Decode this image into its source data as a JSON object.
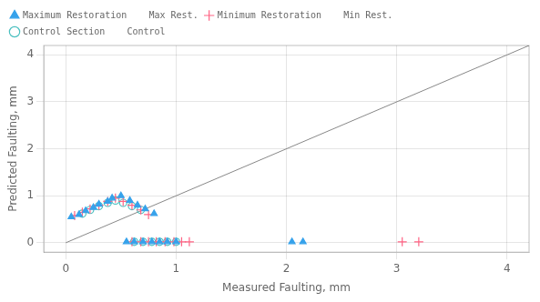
{
  "chart_data": {
    "type": "scatter",
    "xlabel": "Measured Faulting, mm",
    "ylabel": "Predicted Faulting, mm",
    "xlim": [
      -0.2,
      4.2
    ],
    "ylim": [
      -0.2,
      4.2
    ],
    "xticks": [
      0,
      1,
      2,
      3,
      4
    ],
    "yticks": [
      0,
      1,
      2,
      3,
      4
    ],
    "grid": true,
    "legend": "upper left",
    "series": [
      {
        "type": "line",
        "x": [
          0,
          4.2
        ],
        "values": [
          0,
          4.2
        ]
      },
      {
        "name": "Maximum Restoration    Max Rest.",
        "marker": "triangle",
        "x": [
          0.05,
          0.12,
          0.18,
          0.25,
          0.3,
          0.38,
          0.42,
          0.5,
          0.58,
          0.65,
          0.72,
          0.8,
          0.55,
          0.62,
          0.7,
          0.78,
          0.85,
          0.92,
          1.0,
          2.05,
          2.15
        ],
        "values": [
          0.55,
          0.6,
          0.68,
          0.75,
          0.82,
          0.88,
          0.95,
          1.0,
          0.9,
          0.8,
          0.72,
          0.62,
          0.02,
          0.02,
          0.02,
          0.02,
          0.02,
          0.02,
          0.02,
          0.02,
          0.02
        ]
      },
      {
        "name": "Minimum Restoration    Min Rest.",
        "marker": "plus",
        "x": [
          0.08,
          0.15,
          0.22,
          0.3,
          0.38,
          0.45,
          0.52,
          0.6,
          0.68,
          0.75,
          0.6,
          0.68,
          0.75,
          0.82,
          0.9,
          0.98,
          1.05,
          1.12,
          3.05,
          3.2
        ],
        "values": [
          0.58,
          0.65,
          0.72,
          0.8,
          0.88,
          0.95,
          0.88,
          0.8,
          0.7,
          0.6,
          0.02,
          0.02,
          0.02,
          0.02,
          0.02,
          0.02,
          0.02,
          0.02,
          0.02,
          0.02
        ]
      },
      {
        "name": "Control Section    Control",
        "marker": "circle",
        "x": [
          0.15,
          0.22,
          0.3,
          0.38,
          0.45,
          0.52,
          0.6,
          0.68,
          0.62,
          0.7,
          0.78,
          0.85,
          0.92,
          1.0
        ],
        "values": [
          0.62,
          0.7,
          0.78,
          0.85,
          0.9,
          0.85,
          0.78,
          0.7,
          0.02,
          0.02,
          0.02,
          0.02,
          0.02,
          0.02
        ]
      }
    ]
  }
}
